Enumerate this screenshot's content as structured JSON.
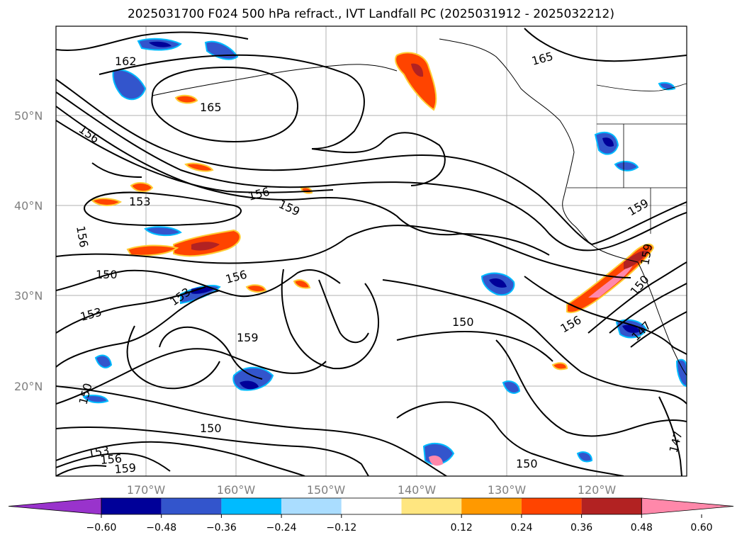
{
  "title": "2025031700 F024 500 hPa refract., IVT Landfall PC (2025031912 - 2025032212)",
  "lat_labels": [
    "50°N",
    "40°N",
    "30°N",
    "20°N"
  ],
  "lon_labels": [
    "170°W",
    "160°W",
    "150°W",
    "140°W",
    "130°W",
    "120°W"
  ],
  "contour_labels": [
    {
      "text": "162"
    },
    {
      "text": "165"
    },
    {
      "text": "165"
    },
    {
      "text": "156"
    },
    {
      "text": "156"
    },
    {
      "text": "159"
    },
    {
      "text": "153"
    },
    {
      "text": "156"
    },
    {
      "text": "150"
    },
    {
      "text": "156"
    },
    {
      "text": "153"
    },
    {
      "text": "153"
    },
    {
      "text": "159"
    },
    {
      "text": "150"
    },
    {
      "text": "150"
    },
    {
      "text": "153"
    },
    {
      "text": "156"
    },
    {
      "text": "159"
    },
    {
      "text": "150"
    },
    {
      "text": "159"
    },
    {
      "text": "159"
    },
    {
      "text": "150"
    },
    {
      "text": "156"
    },
    {
      "text": "147"
    },
    {
      "text": "147"
    },
    {
      "text": "150"
    }
  ],
  "colorbar": {
    "ticks": [
      "−0.60",
      "−0.48",
      "−0.36",
      "−0.24",
      "−0.12",
      "0.12",
      "0.24",
      "0.36",
      "0.48",
      "0.60"
    ],
    "colors": [
      "#9933cc",
      "#000099",
      "#3355cc",
      "#00bbff",
      "#aaddff",
      "#ffffff",
      "#ffe680",
      "#ff9900",
      "#ff4400",
      "#b22222",
      "#ff88aa"
    ]
  }
}
